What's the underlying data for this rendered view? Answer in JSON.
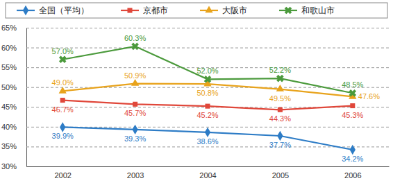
{
  "chart_data": {
    "type": "line",
    "categories": [
      "2002",
      "2003",
      "2004",
      "2005",
      "2006"
    ],
    "series": [
      {
        "name": "全国（平均）",
        "color": "#2d7cc6",
        "marker": "diamond",
        "values": [
          39.9,
          39.3,
          38.6,
          37.7,
          34.2
        ],
        "value_labels": [
          "39.9%",
          "39.3%",
          "38.6%",
          "37.7%",
          "34.2%"
        ]
      },
      {
        "name": "京都市",
        "color": "#e0473a",
        "marker": "square",
        "values": [
          46.7,
          45.7,
          45.2,
          44.3,
          45.3
        ],
        "value_labels": [
          "46.7%",
          "45.7%",
          "45.2%",
          "44.3%",
          "45.3%"
        ]
      },
      {
        "name": "大阪市",
        "color": "#e8a31c",
        "marker": "triangle",
        "values": [
          49.0,
          50.9,
          50.8,
          49.5,
          47.6
        ],
        "value_labels": [
          "49.0%",
          "50.9%",
          "50.8%",
          "49.5%",
          "47.6%"
        ]
      },
      {
        "name": "和歌山市",
        "color": "#4b9a3c",
        "marker": "x",
        "values": [
          57.0,
          60.3,
          52.0,
          52.2,
          48.5
        ],
        "value_labels": [
          "57.0%",
          "60.3%",
          "52.0%",
          "52.2%",
          "48.5%"
        ]
      }
    ],
    "ylim": [
      30,
      65
    ],
    "yticks": [
      {
        "value": 30,
        "label": "30%"
      },
      {
        "value": 35,
        "label": "35%"
      },
      {
        "value": 40,
        "label": "40%"
      },
      {
        "value": 45,
        "label": "45%"
      },
      {
        "value": 50,
        "label": "50%"
      },
      {
        "value": 55,
        "label": "55%"
      },
      {
        "value": 60,
        "label": "60%"
      },
      {
        "value": 65,
        "label": "65%"
      }
    ],
    "grid": true,
    "legend": "top",
    "data_labels": true
  }
}
